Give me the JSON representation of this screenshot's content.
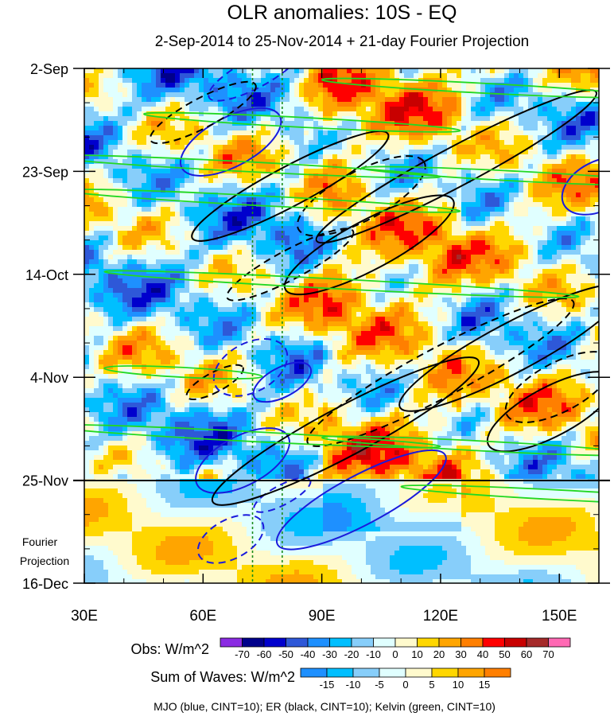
{
  "chart_data": {
    "type": "heatmap",
    "title": "OLR anomalies: 10S - EQ",
    "subtitle": "2-Sep-2014 to 25-Nov-2014 + 21-day Fourier Projection",
    "x_axis": {
      "range": [
        30,
        160
      ],
      "ticks": [
        30,
        60,
        90,
        120,
        150
      ],
      "tick_labels": [
        "30E",
        "60E",
        "90E",
        "120E",
        "150E"
      ]
    },
    "y_axis": {
      "range_days": [
        0,
        105
      ],
      "ticks_days": [
        0,
        21,
        42,
        63,
        84,
        105
      ],
      "tick_labels": [
        "2-Sep",
        "23-Sep",
        "14-Oct",
        "4-Nov",
        "25-Nov",
        "16-Dec"
      ],
      "orientation": "time increases downward"
    },
    "observation_end_day": 84,
    "projection_label": [
      "Fourier",
      "Projection"
    ],
    "reference_longitudes": [
      72.5,
      80
    ],
    "obs_colorbar": {
      "label": "Obs: W/m^2",
      "levels": [
        -70,
        -60,
        -50,
        -40,
        -30,
        -20,
        -10,
        0,
        10,
        20,
        30,
        40,
        50,
        60,
        70
      ],
      "colors": [
        "#8a2be2",
        "#00008b",
        "#0000cd",
        "#2e58d8",
        "#1e90ff",
        "#00bfff",
        "#87cefa",
        "#e0ffff",
        "#fffacd",
        "#ffd700",
        "#ffa500",
        "#ff7f00",
        "#ff0000",
        "#c80000",
        "#a52a2a",
        "#ff69b4"
      ]
    },
    "waves_colorbar": {
      "label": "Sum of Waves: W/m^2",
      "levels": [
        -15,
        -10,
        -5,
        0,
        5,
        10,
        15
      ],
      "colors": [
        "#1e90ff",
        "#00bfff",
        "#87cefa",
        "#e0ffff",
        "#fffacd",
        "#ffd700",
        "#ffa500",
        "#ff7f00"
      ]
    },
    "legend_note": "MJO (blue, CINT=10); ER (black, CINT=10); Kelvin (green, CINT=10)",
    "series": [
      {
        "name": "MJO",
        "color": "#1a1adc",
        "contour_interval": 10,
        "contours": [
          {
            "lon": 67,
            "day": 15,
            "rlon": 14,
            "rday": 5,
            "sign": 1
          },
          {
            "lon": 73,
            "day": 1,
            "rlon": 13,
            "rday": 3,
            "sign": -1
          },
          {
            "lon": 72,
            "day": 61,
            "rlon": 10,
            "rday": 5,
            "sign": -1
          },
          {
            "lon": 80,
            "day": 64,
            "rlon": 8,
            "rday": 3,
            "sign": 1
          },
          {
            "lon": 70,
            "day": 80,
            "rlon": 13,
            "rday": 5,
            "sign": 1
          },
          {
            "lon": 100,
            "day": 88,
            "rlon": 24,
            "rday": 5,
            "sign": 1
          },
          {
            "lon": 67,
            "day": 96,
            "rlon": 9,
            "rday": 4,
            "sign": -1
          },
          {
            "lon": 80,
            "day": 87,
            "rlon": 8,
            "rday": 2,
            "sign": -1
          },
          {
            "lon": 160,
            "day": 24,
            "rlon": 10,
            "rday": 5,
            "sign": 1
          }
        ]
      },
      {
        "name": "ER",
        "color": "#000000",
        "contour_interval": 10,
        "contours": [
          {
            "lon": 82,
            "day": 24,
            "rlon": 28,
            "rday": 4,
            "sign": 1
          },
          {
            "lon": 102,
            "day": 36,
            "rlon": 24,
            "rday": 5,
            "sign": 1
          },
          {
            "lon": 124,
            "day": 20,
            "rlon": 40,
            "rday": 4,
            "sign": 1
          },
          {
            "lon": 82,
            "day": 40,
            "rlon": 18,
            "rday": 3,
            "sign": -1
          },
          {
            "lon": 100,
            "day": 26,
            "rlon": 18,
            "rday": 5,
            "sign": -1
          },
          {
            "lon": 60,
            "day": 9,
            "rlon": 15,
            "rday": 3,
            "sign": -1
          },
          {
            "lon": 96,
            "day": 74,
            "rlon": 38,
            "rday": 5,
            "sign": 1
          },
          {
            "lon": 120,
            "day": 62,
            "rlon": 38,
            "rday": 5,
            "sign": -1
          },
          {
            "lon": 138,
            "day": 57,
            "rlon": 32,
            "rday": 5,
            "sign": 1
          },
          {
            "lon": 148,
            "day": 70,
            "rlon": 18,
            "rday": 5,
            "sign": 1
          },
          {
            "lon": 63,
            "day": 64,
            "rlon": 8,
            "rday": 2,
            "sign": -1
          },
          {
            "lon": 150,
            "day": 65,
            "rlon": 15,
            "rday": 5,
            "sign": -1
          }
        ]
      },
      {
        "name": "Kelvin",
        "color": "#22d822",
        "contour_interval": 10,
        "contours": [
          {
            "lon": 70,
            "day": 20,
            "rlon": 50,
            "rday": 1,
            "sign": 1
          },
          {
            "lon": 85,
            "day": 11,
            "rlon": 40,
            "rday": 1,
            "sign": 1
          },
          {
            "lon": 75,
            "day": 27,
            "rlon": 50,
            "rday": 1,
            "sign": 1
          },
          {
            "lon": 95,
            "day": 44,
            "rlon": 60,
            "rday": 1,
            "sign": 1
          },
          {
            "lon": 130,
            "day": 4,
            "rlon": 40,
            "rday": 1,
            "sign": 1
          },
          {
            "lon": 140,
            "day": 22,
            "rlon": 40,
            "rday": 1,
            "sign": 1
          },
          {
            "lon": 70,
            "day": 75,
            "rlon": 50,
            "rday": 1,
            "sign": 1
          },
          {
            "lon": 130,
            "day": 77,
            "rlon": 40,
            "rday": 1,
            "sign": 1
          },
          {
            "lon": 150,
            "day": 87,
            "rlon": 40,
            "rday": 1,
            "sign": 1
          },
          {
            "lon": 55,
            "day": 62,
            "rlon": 20,
            "rday": 1,
            "sign": 1
          }
        ]
      }
    ]
  }
}
